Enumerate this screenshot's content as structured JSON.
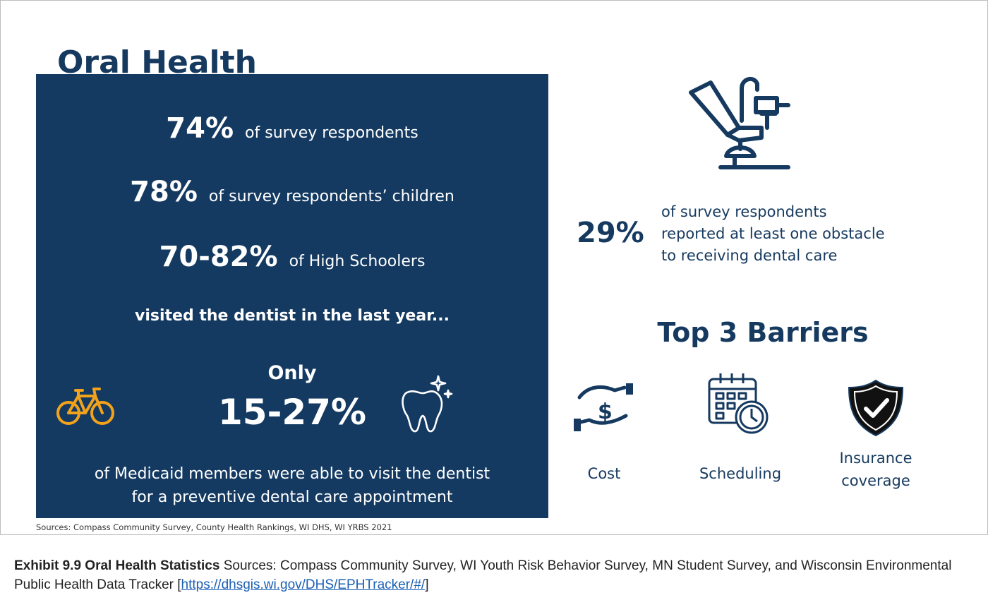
{
  "infographic": {
    "title": "Oral Health",
    "stats": [
      {
        "value": "74%",
        "description": "of survey respondents"
      },
      {
        "value": "78%",
        "description": "of  survey respondents’ children"
      },
      {
        "value": "70-82%",
        "description": "of High Schoolers"
      }
    ],
    "visited_text": "visited the dentist in the last year...",
    "only_label": "Only",
    "medicaid_value": "15-27%",
    "medicaid_line1": "of Medicaid members were able to visit the dentist",
    "medicaid_line2": "for a preventive dental care appointment",
    "obstacle_value": "29%",
    "obstacle_lines": [
      "of survey respondents",
      "reported at least one obstacle",
      "to receiving dental care"
    ],
    "barriers_title": "Top 3 Barriers",
    "barriers": [
      {
        "label": "Cost",
        "icon": "money-hand-icon"
      },
      {
        "label": "Scheduling",
        "icon": "calendar-clock-icon"
      },
      {
        "label_line1": "Insurance",
        "label_line2": "coverage",
        "icon": "shield-check-icon"
      }
    ],
    "sources": "Sources: Compass Community Survey, County Health Rankings, WI DHS, WI YRBS 2021"
  },
  "caption": {
    "bold": "Exhibit 9.9 Oral Health Statistics",
    "text": " Sources: Compass Community Survey, WI Youth Risk Behavior Survey, MN Student Survey, and Wisconsin Environmental Public Health Data Tracker [",
    "link": "https://dhsgis.wi.gov/DHS/EPHTracker/#/",
    "end": "]"
  },
  "colors": {
    "navy": "#143a62",
    "title_navy": "#163a5f",
    "bike_orange": "#f2a31b",
    "link_blue": "#1a5fb4"
  }
}
